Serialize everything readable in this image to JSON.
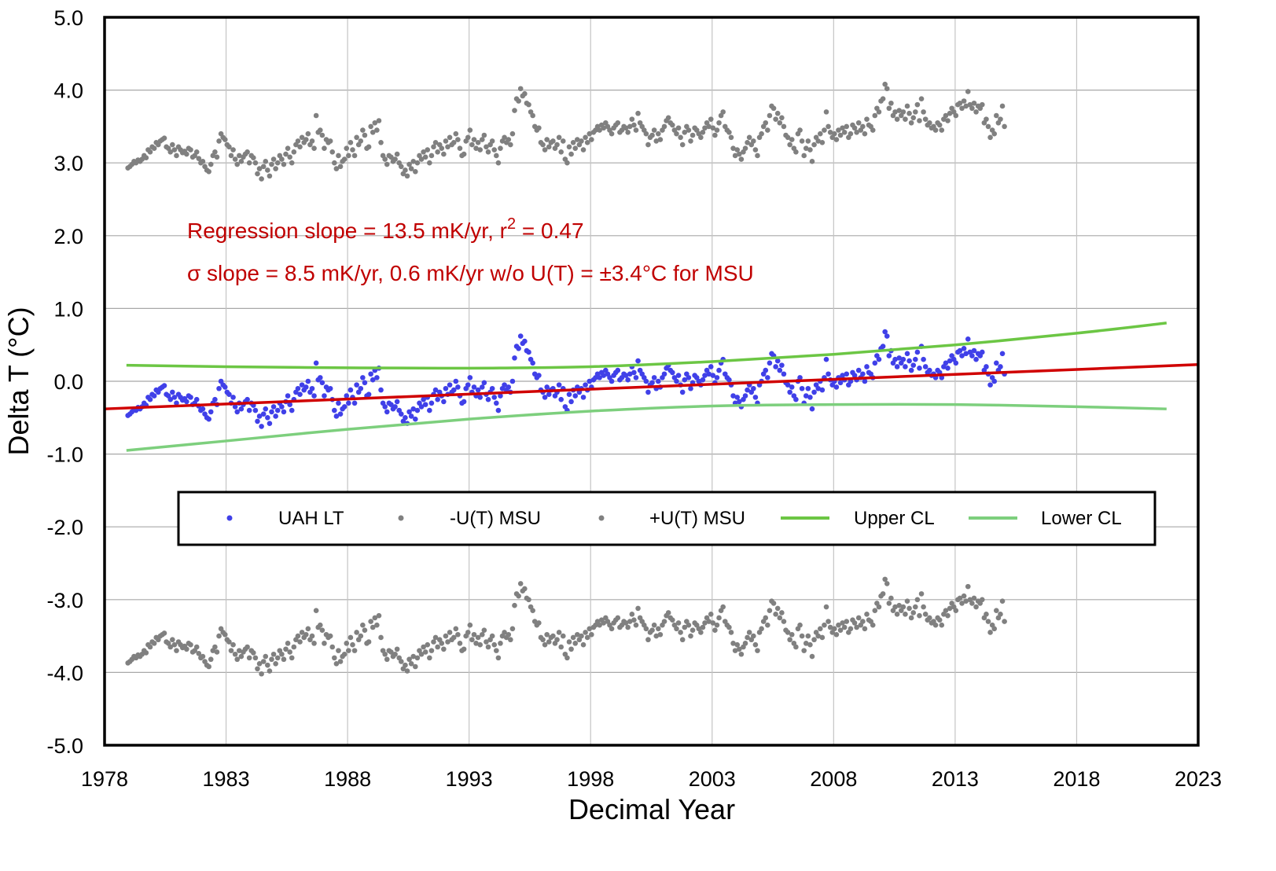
{
  "chart_data": {
    "type": "scatter",
    "title": "",
    "xlabel": "Decimal Year",
    "ylabel": "Delta T (°C)",
    "xlim": [
      1978,
      2023
    ],
    "ylim": [
      -5.0,
      5.0
    ],
    "grid": true,
    "x_ticks": [
      "1978",
      "1983",
      "1988",
      "1993",
      "1998",
      "2003",
      "2008",
      "2013",
      "2018",
      "2023"
    ],
    "y_ticks": [
      "5.0",
      "4.0",
      "3.0",
      "2.0",
      "1.0",
      "0.0",
      "-1.0",
      "-2.0",
      "-3.0",
      "-4.0",
      "-5.0"
    ],
    "y_tick_values": [
      5,
      4,
      3,
      2,
      1,
      0,
      -1,
      -2,
      -3,
      -4,
      -5
    ],
    "x_tick_values": [
      1978,
      1983,
      1988,
      1993,
      1998,
      2003,
      2008,
      2013,
      2018,
      2023
    ],
    "annotations": [
      {
        "text_main": "Regression slope = 13.5 mK/yr, r",
        "sup": "2",
        "text_tail": " = 0.47"
      },
      {
        "text": "σ slope = 8.5 mK/yr, 0.6 mK/yr w/o U(T) = ±3.4°C for MSU"
      }
    ],
    "uncertainty_offset": 3.4,
    "legend": {
      "placement": "center-lower",
      "entries": [
        {
          "label": "UAH LT",
          "marker": "dot",
          "color": "#4040e8"
        },
        {
          "label": "-U(T) MSU",
          "marker": "dot",
          "color": "#808080"
        },
        {
          "label": "+U(T) MSU",
          "marker": "dot",
          "color": "#808080"
        },
        {
          "label": "Upper CL",
          "marker": "line",
          "color": "#6cc644"
        },
        {
          "label": "Lower CL",
          "marker": "line",
          "color": "#7dcf7d"
        }
      ]
    },
    "colors": {
      "uah": "#4040e8",
      "uncertainty": "#808080",
      "regression": "#d00000",
      "upper_cl": "#6cc644",
      "lower_cl": "#7dcf7d",
      "annotation": "#c00000"
    },
    "regression": {
      "name": "Regression",
      "x": [
        1978,
        2023
      ],
      "y": [
        -0.38,
        0.23
      ]
    },
    "series": [
      {
        "name": "UAH LT",
        "x_start": 1978.96,
        "x_step": 0.0833,
        "values": [
          -0.47,
          -0.45,
          -0.42,
          -0.38,
          -0.4,
          -0.36,
          -0.38,
          -0.35,
          -0.3,
          -0.33,
          -0.22,
          -0.25,
          -0.18,
          -0.2,
          -0.12,
          -0.15,
          -0.1,
          -0.08,
          -0.06,
          -0.18,
          -0.2,
          -0.25,
          -0.15,
          -0.22,
          -0.3,
          -0.18,
          -0.22,
          -0.26,
          -0.24,
          -0.28,
          -0.2,
          -0.22,
          -0.32,
          -0.3,
          -0.25,
          -0.34,
          -0.4,
          -0.38,
          -0.45,
          -0.5,
          -0.52,
          -0.42,
          -0.3,
          -0.25,
          -0.32,
          -0.1,
          0.0,
          -0.05,
          -0.08,
          -0.15,
          -0.18,
          -0.3,
          -0.22,
          -0.35,
          -0.42,
          -0.3,
          -0.38,
          -0.32,
          -0.28,
          -0.25,
          -0.4,
          -0.3,
          -0.33,
          -0.4,
          -0.55,
          -0.48,
          -0.62,
          -0.45,
          -0.38,
          -0.5,
          -0.58,
          -0.42,
          -0.35,
          -0.48,
          -0.4,
          -0.3,
          -0.35,
          -0.42,
          -0.28,
          -0.2,
          -0.32,
          -0.4,
          -0.25,
          -0.15,
          -0.1,
          -0.18,
          -0.05,
          -0.12,
          -0.08,
          0.0,
          -0.15,
          -0.1,
          -0.2,
          0.25,
          0.02,
          0.05,
          -0.02,
          -0.2,
          -0.08,
          -0.12,
          -0.1,
          -0.25,
          -0.4,
          -0.48,
          -0.3,
          -0.45,
          -0.38,
          -0.35,
          -0.2,
          -0.3,
          -0.12,
          -0.22,
          -0.3,
          -0.05,
          -0.15,
          -0.1,
          0.05,
          -0.02,
          -0.2,
          -0.18,
          0.1,
          0.02,
          0.15,
          0.05,
          0.18,
          -0.12,
          -0.3,
          -0.35,
          -0.42,
          -0.3,
          -0.32,
          -0.38,
          -0.35,
          -0.28,
          -0.4,
          -0.45,
          -0.55,
          -0.5,
          -0.58,
          -0.42,
          -0.48,
          -0.38,
          -0.52,
          -0.4,
          -0.3,
          -0.35,
          -0.25,
          -0.32,
          -0.22,
          -0.4,
          -0.3,
          -0.18,
          -0.12,
          -0.25,
          -0.15,
          -0.2,
          -0.28,
          -0.1,
          -0.18,
          -0.05,
          -0.15,
          -0.12,
          0.0,
          -0.08,
          -0.2,
          -0.3,
          -0.28,
          -0.1,
          -0.05,
          0.05,
          -0.15,
          -0.08,
          -0.2,
          -0.12,
          -0.22,
          -0.08,
          -0.02,
          -0.18,
          -0.25,
          -0.15,
          -0.1,
          -0.22,
          -0.3,
          -0.4,
          -0.2,
          -0.1,
          -0.05,
          -0.12,
          -0.08,
          -0.15,
          0.0,
          0.32,
          0.48,
          0.45,
          0.62,
          0.52,
          0.55,
          0.42,
          0.4,
          0.3,
          0.25,
          0.1,
          0.05,
          0.08,
          -0.12,
          -0.15,
          -0.22,
          -0.08,
          -0.18,
          -0.12,
          -0.1,
          -0.2,
          -0.15,
          -0.05,
          -0.25,
          -0.1,
          -0.35,
          -0.4,
          -0.18,
          -0.28,
          -0.12,
          -0.2,
          -0.08,
          -0.15,
          -0.1,
          -0.22,
          -0.05,
          -0.12,
          0.0,
          -0.08,
          0.02,
          0.05,
          0.1,
          0.05,
          0.12,
          0.08,
          0.15,
          0.1,
          0.05,
          0.0,
          0.08,
          0.12,
          0.15,
          0.02,
          0.05,
          0.1,
          0.08,
          0.02,
          0.1,
          0.2,
          0.12,
          0.05,
          0.28,
          0.15,
          0.1,
          0.05,
          0.0,
          -0.15,
          -0.05,
          -0.02,
          0.05,
          -0.1,
          0.0,
          -0.08,
          0.05,
          0.1,
          0.18,
          0.22,
          0.15,
          0.12,
          0.05,
          0.0,
          0.08,
          -0.05,
          -0.15,
          0.02,
          0.1,
          0.05,
          -0.1,
          -0.02,
          0.08,
          0.05,
          0.0,
          -0.05,
          0.02,
          0.08,
          0.15,
          0.1,
          0.2,
          0.08,
          -0.02,
          0.05,
          0.15,
          0.25,
          0.3,
          0.1,
          0.05,
          0.02,
          -0.05,
          -0.2,
          -0.3,
          -0.22,
          -0.28,
          -0.35,
          -0.25,
          -0.2,
          -0.12,
          -0.05,
          -0.15,
          -0.1,
          -0.22,
          -0.3,
          -0.05,
          0.0,
          0.1,
          0.15,
          0.05,
          0.25,
          0.38,
          0.35,
          0.2,
          0.28,
          0.15,
          0.22,
          0.1,
          -0.02,
          -0.05,
          -0.15,
          -0.08,
          -0.2,
          -0.25,
          0.0,
          0.05,
          -0.1,
          -0.3,
          -0.2,
          -0.1,
          -0.22,
          -0.38,
          -0.15,
          -0.05,
          -0.1,
          0.0,
          -0.12,
          0.05,
          0.3,
          0.1,
          0.02,
          -0.05,
          0.0,
          -0.08,
          0.05,
          -0.02,
          0.08,
          0.02,
          0.1,
          -0.05,
          0.0,
          0.12,
          0.08,
          0.02,
          0.15,
          0.05,
          0.1,
          0.0,
          0.2,
          0.12,
          0.1,
          0.05,
          0.25,
          0.35,
          0.3,
          0.45,
          0.48,
          0.68,
          0.62,
          0.35,
          0.42,
          0.25,
          0.3,
          0.2,
          0.32,
          0.25,
          0.3,
          0.2,
          0.38,
          0.28,
          0.15,
          0.22,
          0.3,
          0.4,
          0.18,
          0.48,
          0.3,
          0.2,
          0.12,
          0.15,
          0.08,
          0.1,
          0.05,
          0.15,
          0.12,
          0.05,
          0.2,
          0.25,
          0.18,
          0.28,
          0.35,
          0.3,
          0.25,
          0.4,
          0.42,
          0.35,
          0.45,
          0.38,
          0.58,
          0.4,
          0.35,
          0.42,
          0.3,
          0.38,
          0.35,
          0.4,
          0.15,
          0.2,
          0.1,
          -0.05,
          0.05,
          0.0,
          0.25,
          0.15,
          0.2,
          0.38,
          0.1
        ]
      },
      {
        "name": "Upper CL",
        "x": [
          1978.9,
          1983,
          1988,
          1993,
          1998,
          2003,
          2008,
          2013,
          2018,
          2021.7
        ],
        "y": [
          0.22,
          0.2,
          0.185,
          0.18,
          0.2,
          0.27,
          0.37,
          0.5,
          0.66,
          0.8
        ]
      },
      {
        "name": "Lower CL",
        "x": [
          1978.9,
          1983,
          1988,
          1993,
          1998,
          2003,
          2008,
          2013,
          2018,
          2021.7
        ],
        "y": [
          -0.95,
          -0.82,
          -0.66,
          -0.52,
          -0.41,
          -0.34,
          -0.32,
          -0.32,
          -0.35,
          -0.38
        ]
      }
    ]
  }
}
